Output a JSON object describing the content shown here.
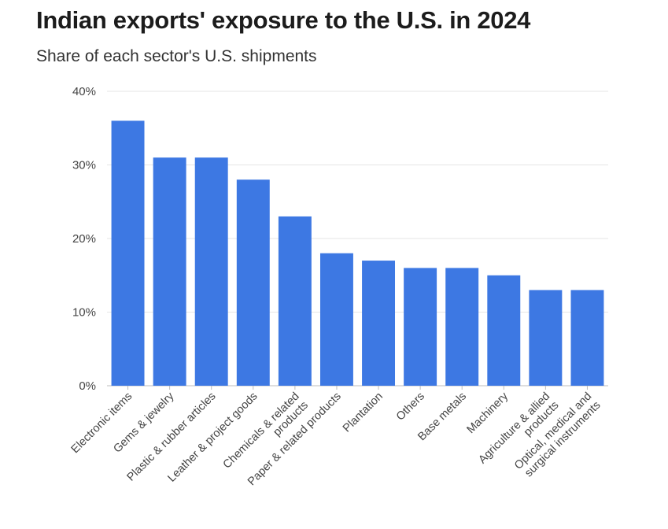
{
  "title": "Indian exports' exposure to the U.S. in 2024",
  "subtitle": "Share of each sector's U.S. shipments",
  "chart_data": {
    "type": "bar",
    "title": "Indian exports' exposure to the U.S. in 2024",
    "subtitle": "Share of each sector's U.S. shipments",
    "xlabel": "",
    "ylabel": "",
    "ylim": [
      0,
      40
    ],
    "yticks": [
      0,
      10,
      20,
      30,
      40
    ],
    "ytick_labels": [
      "0%",
      "10%",
      "20%",
      "30%",
      "40%"
    ],
    "grid": true,
    "bar_color": "#3d78e3",
    "categories": [
      [
        "Electronic items"
      ],
      [
        "Gems & jewelry"
      ],
      [
        "Plastic & rubber articles"
      ],
      [
        "Leather & project goods"
      ],
      [
        "Chemicals & related",
        "products"
      ],
      [
        "Paper & related products"
      ],
      [
        "Plantation"
      ],
      [
        "Others"
      ],
      [
        "Base metals"
      ],
      [
        "Machinery"
      ],
      [
        "Agriculture & allied",
        "products"
      ],
      [
        "Optical, medical and",
        "surgical instruments"
      ]
    ],
    "values": [
      36,
      31,
      31,
      28,
      23,
      18,
      17,
      16,
      16,
      15,
      13,
      13
    ]
  }
}
